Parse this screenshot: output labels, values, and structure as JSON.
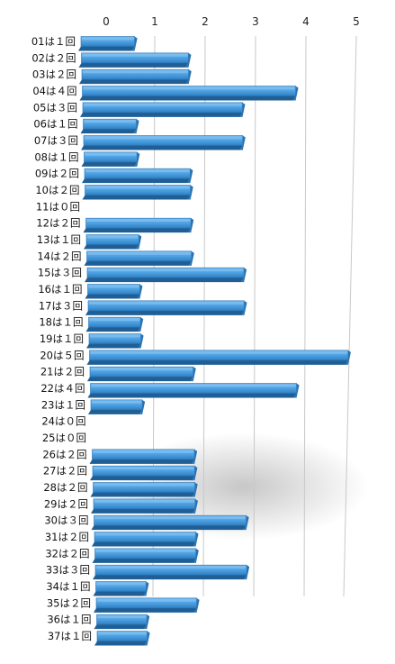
{
  "chart_data": {
    "type": "bar",
    "orientation": "horizontal",
    "style": "3d-perspective",
    "xlim": [
      0,
      5
    ],
    "x_ticks": [
      "0",
      "1",
      "2",
      "3",
      "4",
      "5"
    ],
    "grid": true,
    "bar_color": "#4a9ee0",
    "bar_edge_color": "#1f5f96",
    "bar_top_color": "#8cc8f4",
    "categories": [
      "01は１回",
      "02は２回",
      "03は２回",
      "04は４回",
      "05は３回",
      "06は１回",
      "07は３回",
      "08は１回",
      "09は２回",
      "10は２回",
      "11は０回",
      "12は２回",
      "13は１回",
      "14は２回",
      "15は３回",
      "16は１回",
      "17は３回",
      "18は１回",
      "19は１回",
      "20は５回",
      "21は２回",
      "22は４回",
      "23は１回",
      "24は０回",
      "25は０回",
      "26は２回",
      "27は２回",
      "28は２回",
      "29は２回",
      "30は３回",
      "31は２回",
      "32は２回",
      "33は３回",
      "34は１回",
      "35は２回",
      "36は１回",
      "37は１回"
    ],
    "values": [
      1,
      2,
      2,
      4,
      3,
      1,
      3,
      1,
      2,
      2,
      0,
      2,
      1,
      2,
      3,
      1,
      3,
      1,
      1,
      5,
      2,
      4,
      1,
      0,
      0,
      2,
      2,
      2,
      2,
      3,
      2,
      2,
      3,
      1,
      2,
      1,
      1
    ]
  }
}
